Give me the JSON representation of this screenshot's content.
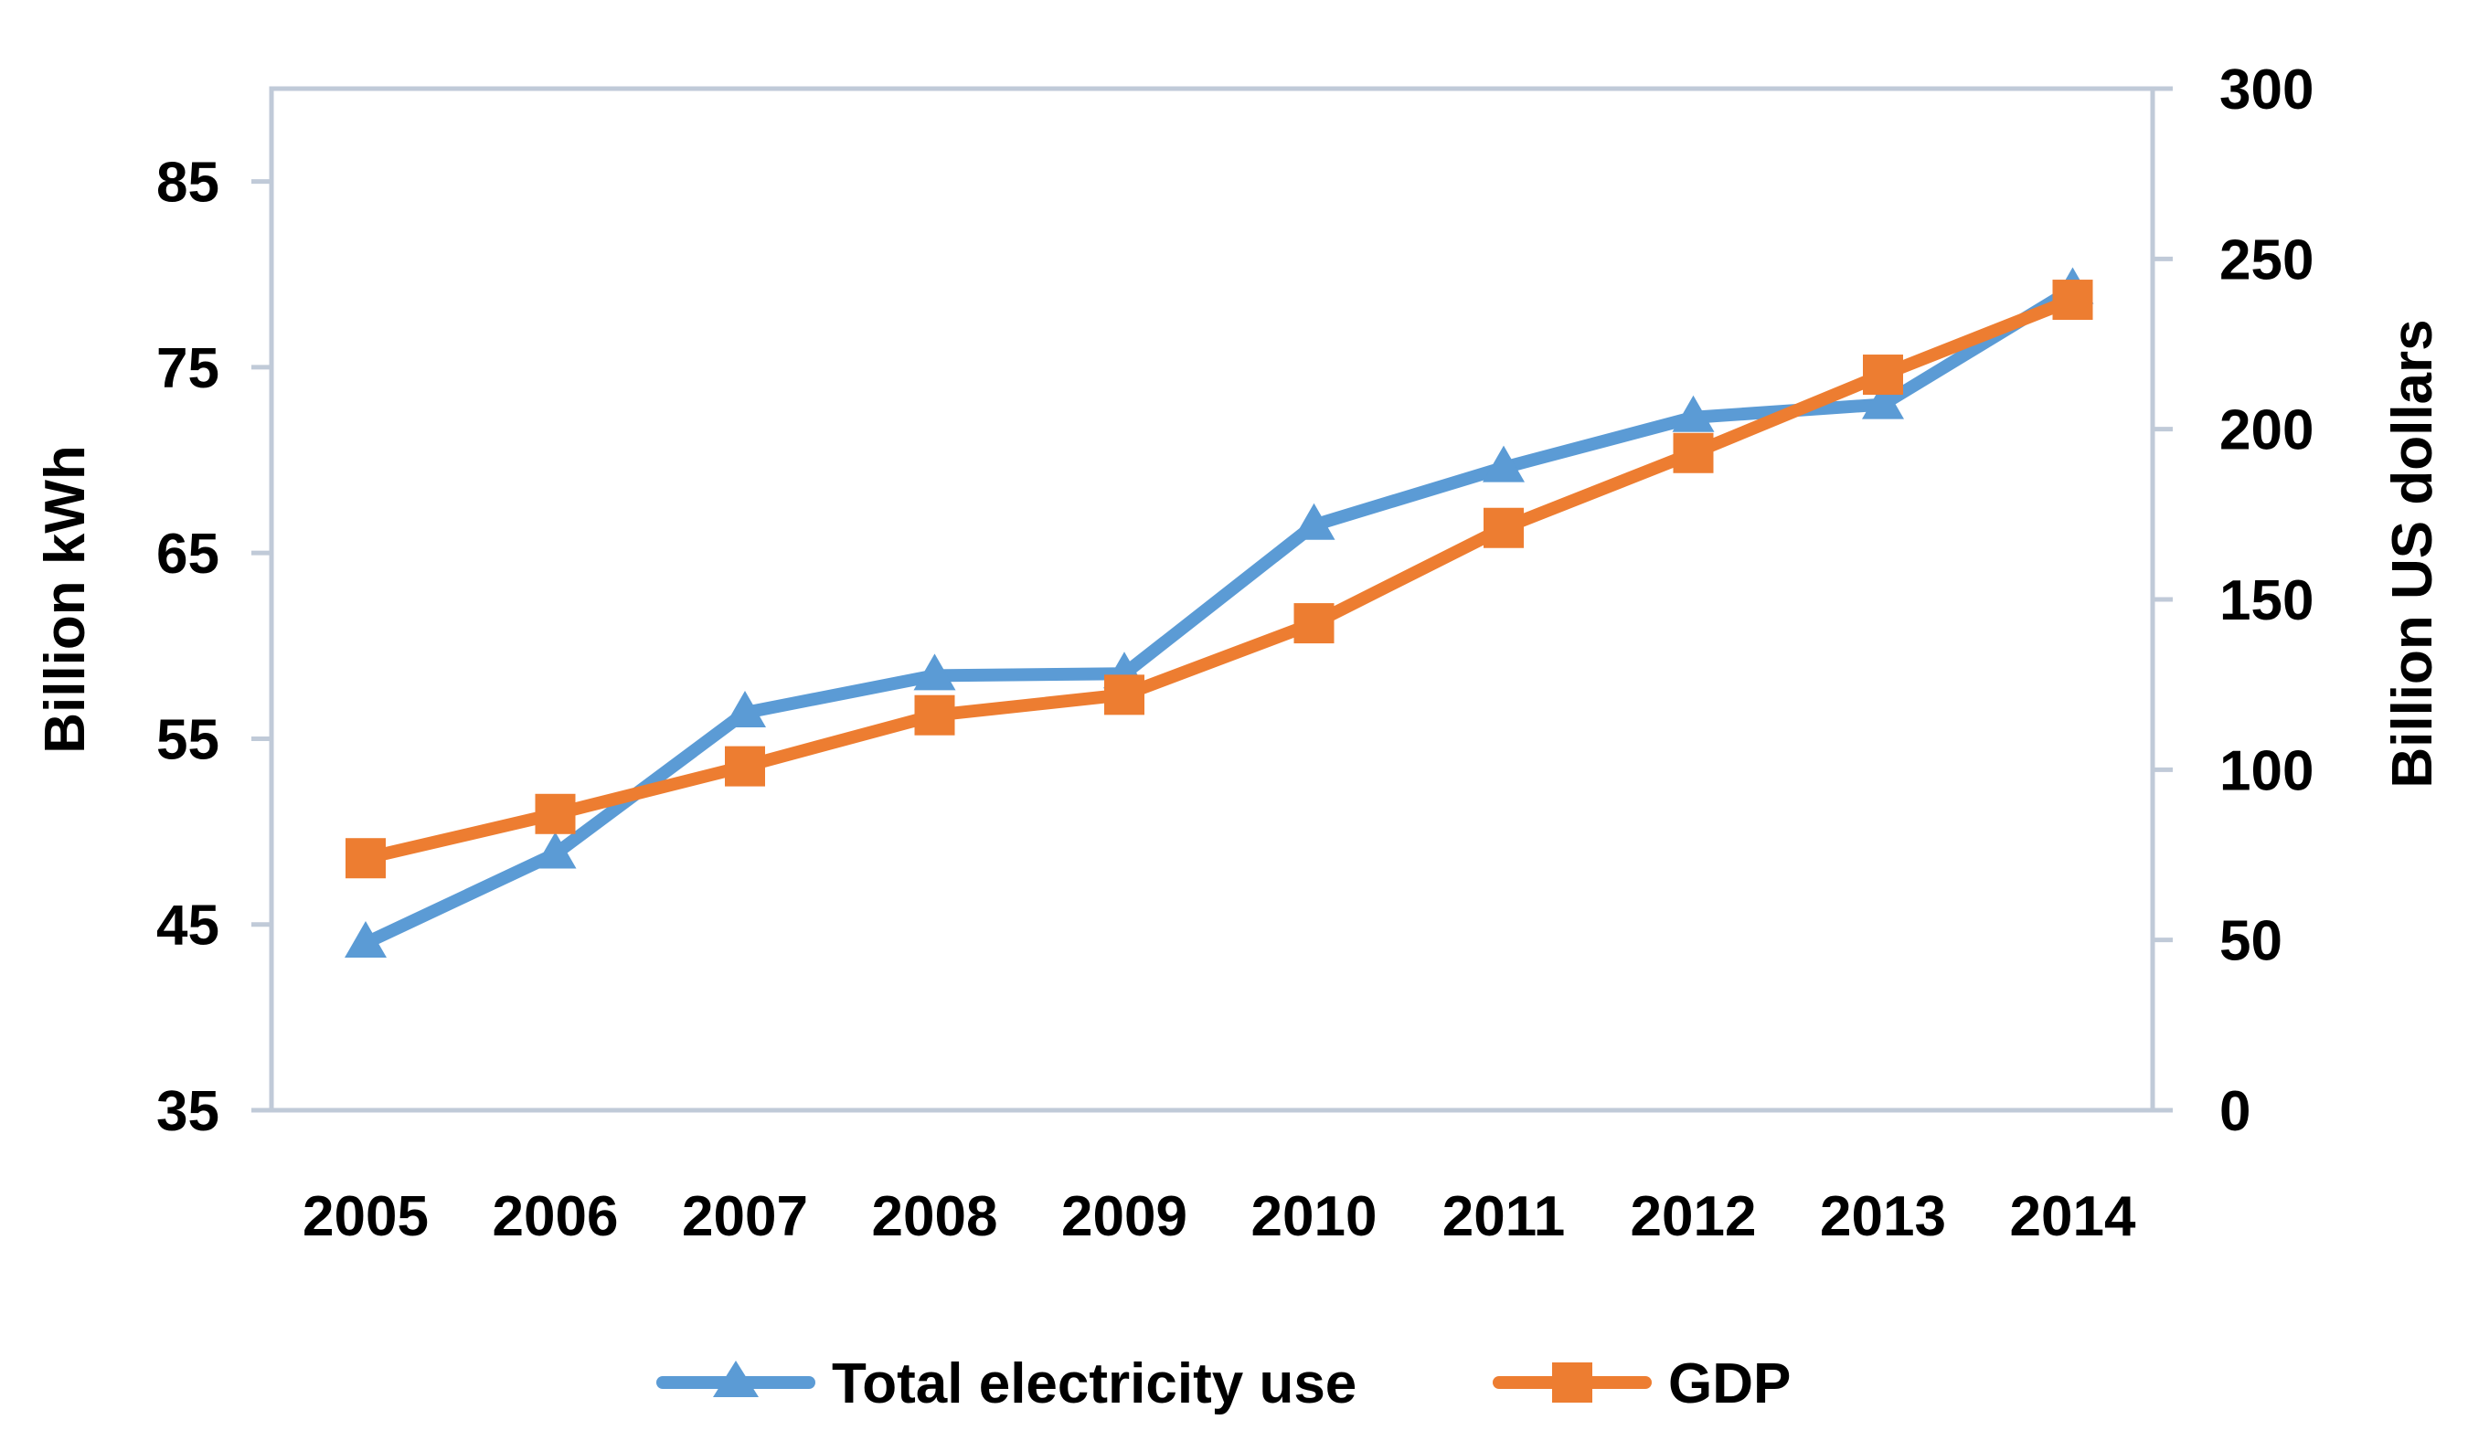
{
  "chart_data": {
    "type": "line",
    "title": "",
    "categories": [
      "2005",
      "2006",
      "2007",
      "2008",
      "2009",
      "2010",
      "2011",
      "2012",
      "2013",
      "2014"
    ],
    "y_left": {
      "label": "Billion kWh",
      "range": [
        35,
        90
      ],
      "ticks": [
        35,
        45,
        55,
        65,
        75,
        85
      ],
      "tick_labels": [
        "35",
        "45",
        "55",
        "65",
        "75",
        "85"
      ]
    },
    "y_right": {
      "label": "Billion US dollars",
      "range": [
        0,
        300
      ],
      "ticks": [
        0,
        50,
        100,
        150,
        200,
        250,
        300
      ],
      "tick_labels": [
        "0",
        "50",
        "100",
        "150",
        "200",
        "250",
        "300"
      ]
    },
    "grid": false,
    "legend_position": "bottom",
    "series": [
      {
        "name": "Total electricity use",
        "axis": "left",
        "color": "#5B9BD5",
        "marker": "triangle",
        "values": [
          44.0,
          48.8,
          56.4,
          58.4,
          58.5,
          66.5,
          69.6,
          72.3,
          73.0,
          79.2
        ]
      },
      {
        "name": "GDP",
        "axis": "right",
        "color": "#ED7D31",
        "marker": "square",
        "values": [
          74,
          87,
          101,
          116,
          122,
          143,
          171,
          193,
          216,
          238
        ]
      }
    ]
  }
}
